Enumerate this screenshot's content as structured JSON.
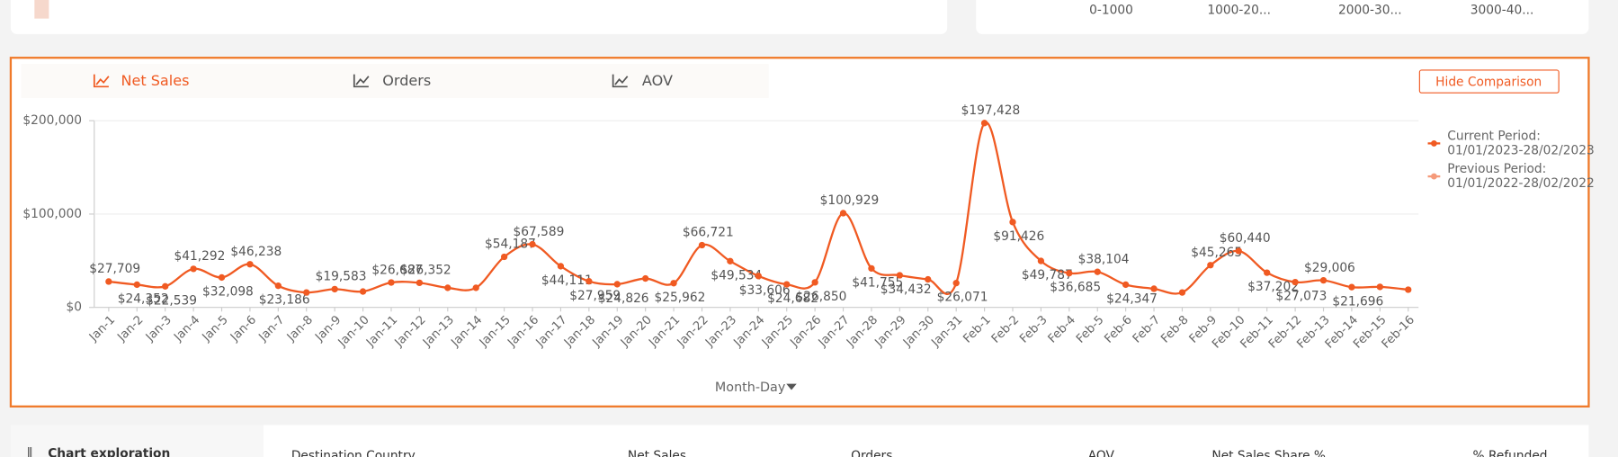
{
  "top_cards": {
    "bins": [
      "0-1000",
      "1000-20...",
      "2000-30...",
      "3000-40..."
    ]
  },
  "tabs": [
    "Net Sales",
    "Orders",
    "AOV"
  ],
  "button": "Hide Comparison",
  "x_axis_selector": "Month-Day",
  "legend": [
    {
      "name": "Current Period:",
      "detail": "01/01/2023-28/02/2023",
      "color": "#f05a22"
    },
    {
      "name": "Previous Period:",
      "detail": "01/01/2022-28/02/2022",
      "color": "#f59a7a"
    }
  ],
  "chart_data": {
    "type": "line",
    "color": "#f05a22",
    "grid": true,
    "categories": [
      "Jan-1",
      "Jan-2",
      "Jan-3",
      "Jan-4",
      "Jan-5",
      "Jan-6",
      "Jan-7",
      "Jan-8",
      "Jan-9",
      "Jan-10",
      "Jan-11",
      "Jan-12",
      "Jan-13",
      "Jan-14",
      "Jan-15",
      "Jan-16",
      "Jan-17",
      "Jan-18",
      "Jan-19",
      "Jan-20",
      "Jan-21",
      "Jan-22",
      "Jan-23",
      "Jan-24",
      "Jan-25",
      "Jan-26",
      "Jan-27",
      "Jan-28",
      "Jan-29",
      "Jan-30",
      "Jan-31",
      "Feb-1",
      "Feb-2",
      "Feb-3",
      "Feb-4",
      "Feb-5",
      "Feb-6",
      "Feb-7",
      "Feb-8",
      "Feb-9",
      "Feb-10",
      "Feb-11",
      "Feb-12",
      "Feb-13",
      "Feb-14",
      "Feb-15",
      "Feb-16"
    ],
    "values": [
      27709,
      24352,
      22539,
      41292,
      32098,
      46238,
      23186,
      16000,
      19583,
      17000,
      26687,
      26352,
      21000,
      21000,
      54187,
      67589,
      44111,
      27959,
      24826,
      31000,
      25962,
      66721,
      49534,
      33606,
      24682,
      26850,
      100929,
      41755,
      34432,
      30000,
      26071,
      197428,
      91426,
      49787,
      36685,
      38104,
      24347,
      20000,
      16000,
      45265,
      60440,
      37202,
      27073,
      29006,
      21696,
      22000,
      19000
    ],
    "value_labels": [
      "$27,709",
      "$24,352",
      "$22,539",
      "$41,292",
      "$32,098",
      "$46,238",
      "$23,186",
      null,
      "$19,583",
      null,
      "$26,687",
      "$26,352",
      null,
      null,
      "$54,187",
      "$67,589",
      "$44,111",
      "$27,959",
      "$24,826",
      null,
      "$25,962",
      "$66,721",
      "$49,534",
      "$33,606",
      "$24,682",
      "$26,850",
      "$100,929",
      "$41,755",
      "$34,432",
      null,
      "$26,071",
      "$197,428",
      "$91,426",
      "$49,787",
      "$36,685",
      "$38,104",
      "$24,347",
      null,
      null,
      "$45,265",
      "$60,440",
      "$37,202",
      "$27,073",
      "$29,006",
      "$21,696",
      null,
      null
    ],
    "ylim": [
      0,
      200000
    ],
    "yticks": [
      {
        "value": 0,
        "label": "$0"
      },
      {
        "value": 100000,
        "label": "$100,000"
      },
      {
        "value": 200000,
        "label": "$200,000"
      }
    ]
  },
  "table_panel": {
    "title": "Chart exploration",
    "headers": [
      "Destination Country",
      "Net Sales",
      "Orders",
      "AOV",
      "Net Sales Share %",
      "% Refunded"
    ]
  }
}
